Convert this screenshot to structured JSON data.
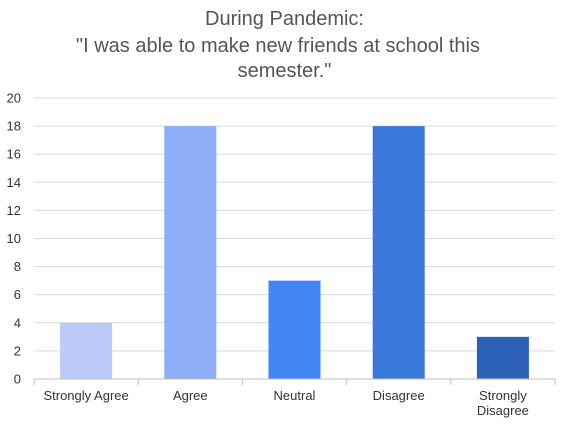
{
  "chart_data": {
    "type": "bar",
    "title_lines": [
      "During Pandemic:",
      "\"I was able to make new friends at school this",
      "semester.\""
    ],
    "categories": [
      "Strongly Agree",
      "Agree",
      "Neutral",
      "Disagree",
      "Strongly Disagree"
    ],
    "category_lines": [
      [
        "Strongly Agree"
      ],
      [
        "Agree"
      ],
      [
        "Neutral"
      ],
      [
        "Disagree"
      ],
      [
        "Strongly",
        "Disagree"
      ]
    ],
    "values": [
      4,
      18,
      7,
      18,
      3
    ],
    "colors": [
      "#bccbf9",
      "#8eaef7",
      "#4286f4",
      "#3a78dc",
      "#2c5fb8"
    ],
    "ylim": [
      0,
      20
    ],
    "yticks": [
      0,
      2,
      4,
      6,
      8,
      10,
      12,
      14,
      16,
      18,
      20
    ],
    "grid": true,
    "xlabel": "",
    "ylabel": ""
  }
}
